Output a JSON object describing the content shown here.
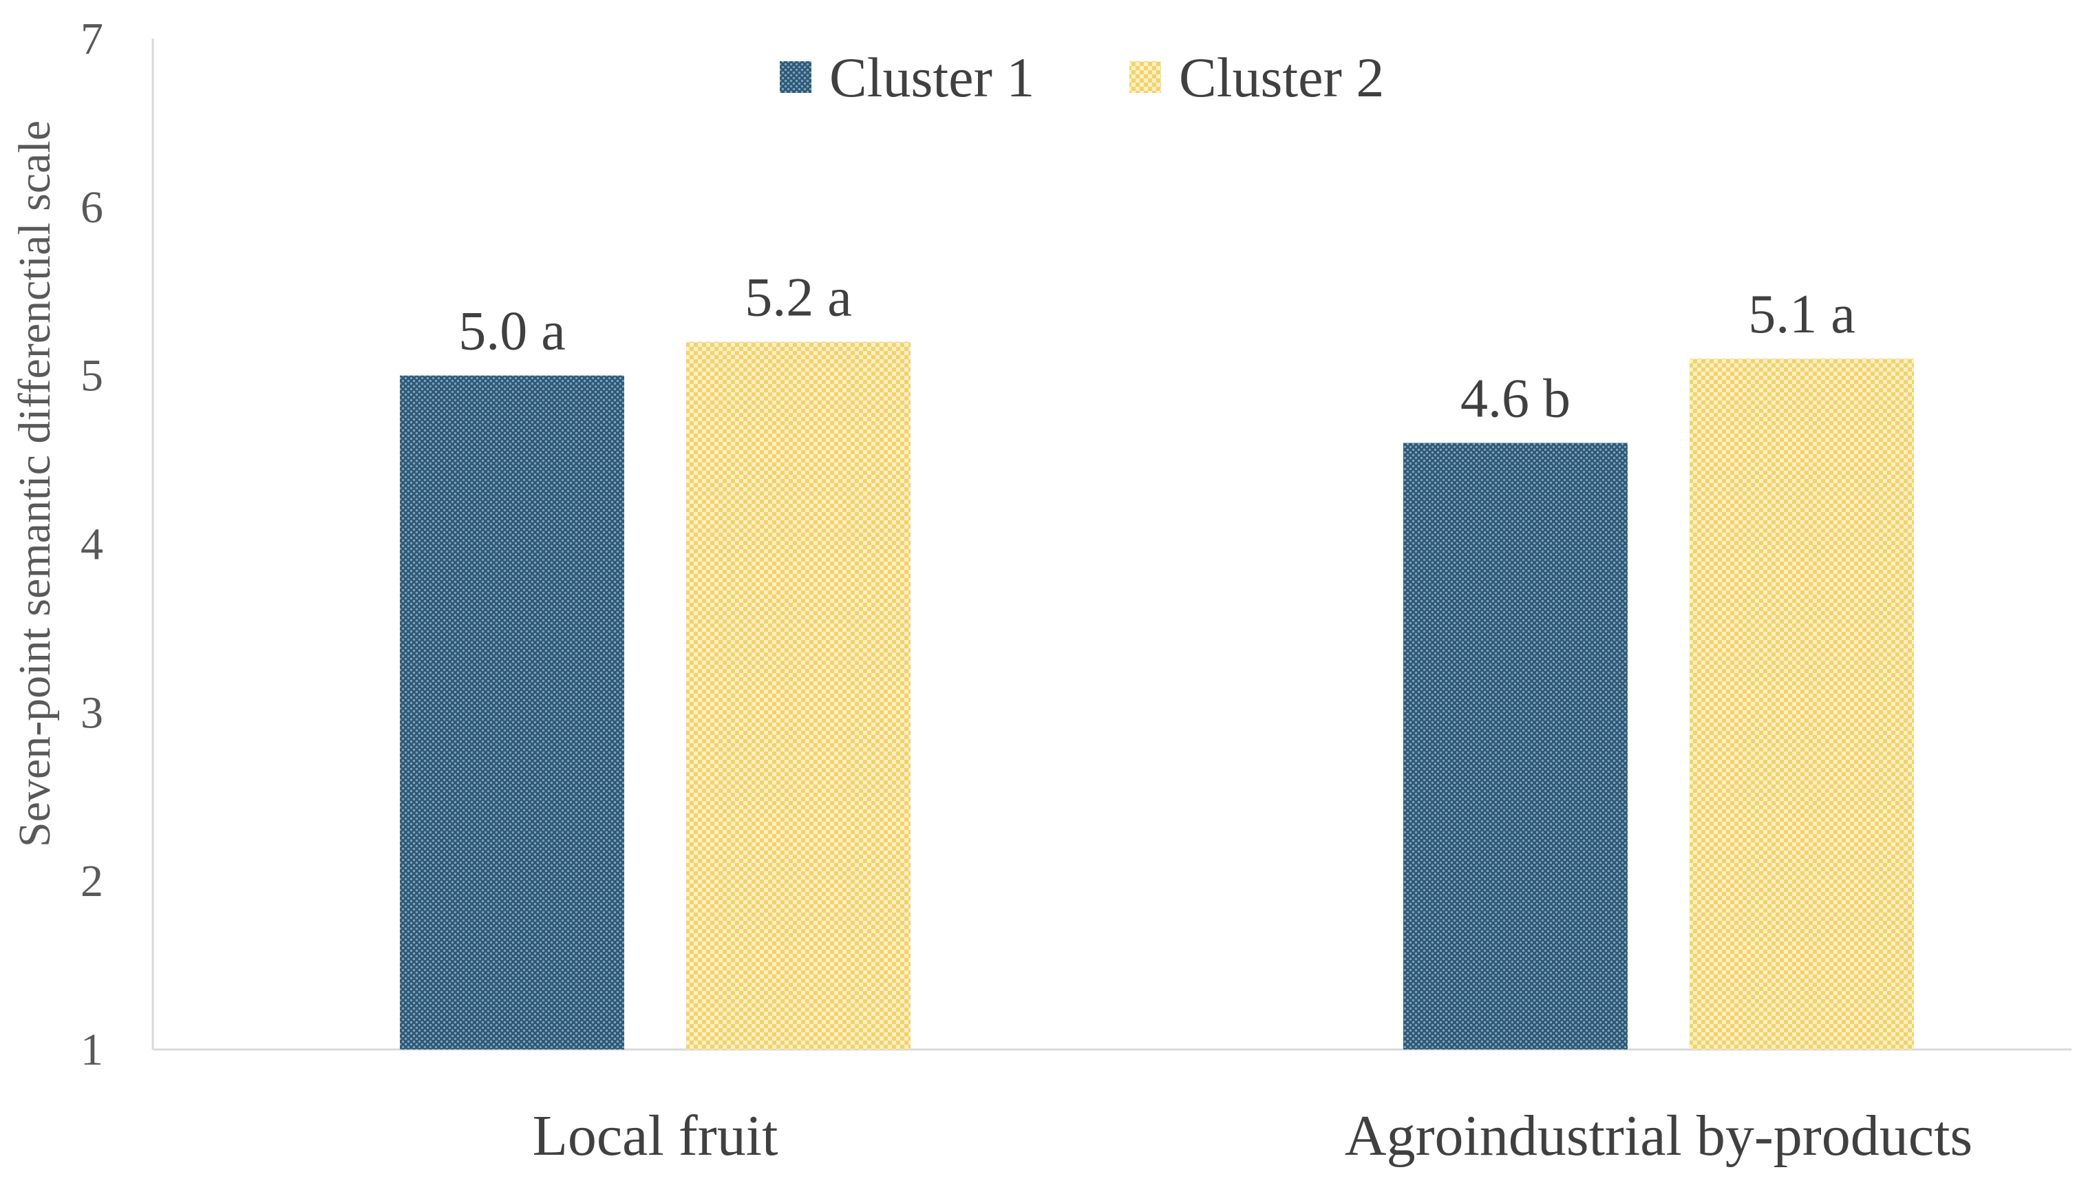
{
  "chart_data": {
    "type": "bar",
    "categories": [
      "Local fruit",
      "Agroindustrial by-products"
    ],
    "series": [
      {
        "name": "Cluster 1",
        "values": [
          5.0,
          4.6
        ],
        "labels": [
          "5.0 a",
          "4.6 b"
        ],
        "color": "#2F5B7A"
      },
      {
        "name": "Cluster 2",
        "values": [
          5.2,
          5.1
        ],
        "labels": [
          "5.2 a",
          "5.1 a"
        ],
        "color": "#F2D26B"
      }
    ],
    "ylabel": "Seven-point  semantic differenctial scale",
    "xlabel": "",
    "ylim": [
      1,
      7
    ],
    "yticks": [
      1,
      2,
      3,
      4,
      5,
      6,
      7
    ],
    "grid": false,
    "legend_position": "top-center"
  }
}
